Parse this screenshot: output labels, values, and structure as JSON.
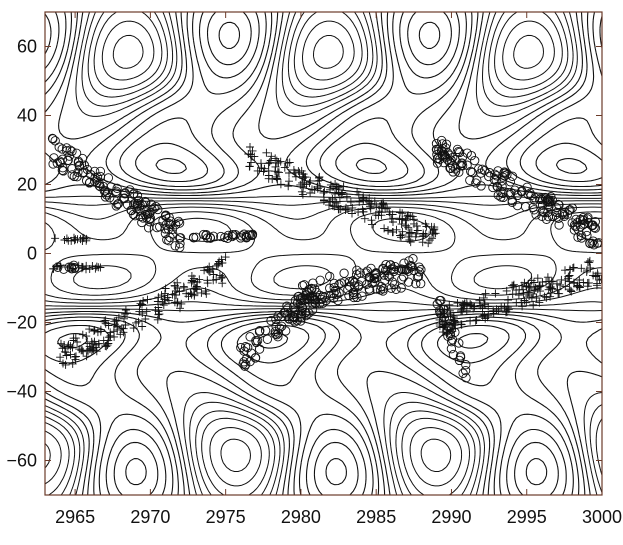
{
  "chart_data": {
    "type": "contour",
    "title": "",
    "xlabel": "",
    "ylabel": "",
    "xlim": [
      2963,
      3000
    ],
    "ylim": [
      -70,
      70
    ],
    "x_ticks": [
      2965,
      2970,
      2975,
      2980,
      2985,
      2990,
      2995,
      3000
    ],
    "y_ticks": [
      -60,
      -40,
      -20,
      0,
      20,
      40,
      60
    ],
    "grid": false,
    "legend": "none",
    "contour_styles": {
      "positive": "solid",
      "negative": "dashed"
    },
    "marker_series": [
      {
        "marker": "circle",
        "clusters": [
          {
            "x_range": [
              2963.5,
              2972
            ],
            "y_start": 30,
            "y_end": 5
          },
          {
            "x_range": [
              2972,
              2977
            ],
            "y": 5
          },
          {
            "x_range": [
              2976,
              2981
            ],
            "y_start": -30,
            "y_end": -12
          },
          {
            "x_range": [
              2980,
              2988
            ],
            "y_start": -12,
            "y_end": -5
          },
          {
            "x_range": [
              2989,
              3000
            ],
            "y_start": 30,
            "y_end": 5
          },
          {
            "x_range": [
              2963.5,
              2965
            ],
            "y": -4
          },
          {
            "x_range": [
              2989,
              2991
            ],
            "y_start": -14,
            "y_end": -34
          }
        ]
      },
      {
        "marker": "plus",
        "clusters": [
          {
            "x_range": [
              2963.5,
              2966
            ],
            "y": 4
          },
          {
            "x_range": [
              2963.5,
              2967
            ],
            "y": -4
          },
          {
            "x_range": [
              2964,
              2975
            ],
            "y_start": -30,
            "y_end": -5
          },
          {
            "x_range": [
              2976.5,
              2989
            ],
            "y_start": 28,
            "y_end": 4
          },
          {
            "x_range": [
              2989,
              3000
            ],
            "y_start": -20,
            "y_end": -5
          }
        ]
      }
    ]
  }
}
